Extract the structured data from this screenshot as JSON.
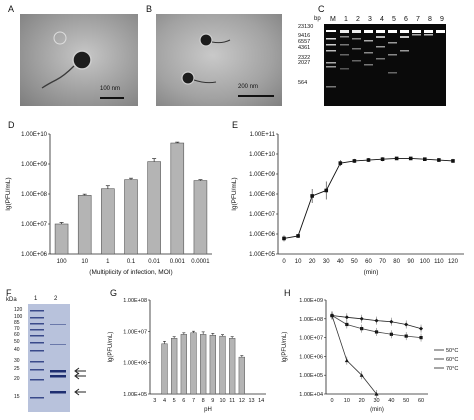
{
  "panels": {
    "A": {
      "letter": "A",
      "scale_bar": "100 nm"
    },
    "B": {
      "letter": "B",
      "scale_bar": "200 nm"
    },
    "C": {
      "letter": "C",
      "unit": "bp",
      "marker_label": "M",
      "lane_labels": [
        "1",
        "2",
        "3",
        "4",
        "5",
        "6",
        "7",
        "8",
        "9"
      ],
      "marker_bands": [
        "23130",
        "9416",
        "6557",
        "4361",
        "2322",
        "2027",
        "564"
      ]
    },
    "F": {
      "letter": "F",
      "unit": "kDa",
      "lane_labels": [
        "1",
        "2"
      ],
      "ladder": [
        "120",
        "100",
        "85",
        "70",
        "60",
        "50",
        "40",
        "30",
        "25",
        "20",
        "15"
      ]
    }
  },
  "chart_data": [
    {
      "panel": "D",
      "type": "bar",
      "ylabel": "lg(PFU/mL)",
      "xlabel": "(Multiplicity of infection, MOI)",
      "categories": [
        "100",
        "10",
        "1",
        "0.1",
        "0.01",
        "0.001",
        "0.0001"
      ],
      "values": [
        10000000.0,
        90000000.0,
        150000000.0,
        300000000.0,
        1200000000.0,
        5000000000.0,
        280000000.0
      ],
      "errors": [
        0.05,
        0.04,
        0.1,
        0.05,
        0.1,
        0.03,
        0.03
      ],
      "yscale": "log",
      "ylim": [
        1000000.0,
        10000000000.0
      ],
      "yticks": [
        "1.00E+06",
        "1.00E+07",
        "1.00E+08",
        "1.00E+09",
        "1.00E+10"
      ]
    },
    {
      "panel": "E",
      "type": "line",
      "ylabel": "lg(PFU/mL)",
      "xlabel": "(min)",
      "x": [
        0,
        10,
        20,
        30,
        40,
        50,
        60,
        70,
        80,
        90,
        100,
        110,
        120
      ],
      "y": [
        600000.0,
        800000.0,
        80000000.0,
        150000000.0,
        3500000000.0,
        4500000000.0,
        5000000000.0,
        5500000000.0,
        6000000000.0,
        6000000000.0,
        5500000000.0,
        5000000000.0,
        4500000000.0
      ],
      "errors": [
        0.15,
        0.1,
        0.35,
        0.45,
        0.15,
        0.1,
        0.1,
        0.1,
        0.05,
        0.05,
        0.05,
        0.1,
        0.1
      ],
      "yscale": "log",
      "ylim": [
        100000.0,
        100000000000.0
      ],
      "yticks": [
        "1.00E+05",
        "1.00E+06",
        "1.00E+07",
        "1.00E+08",
        "1.00E+09",
        "1.00E+10",
        "1.00E+11"
      ],
      "xticks": [
        "0",
        "10",
        "20",
        "30",
        "40",
        "50",
        "60",
        "70",
        "80",
        "90",
        "100",
        "110",
        "120"
      ]
    },
    {
      "panel": "G",
      "type": "bar",
      "ylabel": "lg(PFU/mL)",
      "xlabel": "pH",
      "categories": [
        "3",
        "4",
        "5",
        "6",
        "7",
        "8",
        "9",
        "10",
        "11",
        "12",
        "13",
        "14"
      ],
      "values": [
        null,
        4000000.0,
        6000000.0,
        8000000.0,
        9000000.0,
        8000000.0,
        7500000.0,
        7000000.0,
        6000000.0,
        1500000.0,
        null,
        null
      ],
      "errors": [
        0,
        0.08,
        0.05,
        0.05,
        0.05,
        0.08,
        0.06,
        0.05,
        0.05,
        0.05,
        0,
        0
      ],
      "yscale": "log",
      "ylim": [
        100000.0,
        100000000.0
      ],
      "yticks": [
        "1.00E+05",
        "1.00E+06",
        "1.00E+07",
        "1.00E+08"
      ]
    },
    {
      "panel": "H",
      "type": "line",
      "ylabel": "lg(PFU/mL)",
      "xlabel": "(min)",
      "yscale": "log",
      "ylim": [
        10000.0,
        1000000000.0
      ],
      "yticks": [
        "1.00E+04",
        "1.00E+05",
        "1.00E+06",
        "1.00E+07",
        "1.00E+08",
        "1.00E+09"
      ],
      "xticks": [
        "0",
        "10",
        "20",
        "30",
        "40",
        "50",
        "60"
      ],
      "series": [
        {
          "name": "50°C",
          "marker": "diamond",
          "x": [
            0,
            10,
            20,
            30,
            40,
            50,
            60
          ],
          "y": [
            150000000.0,
            120000000.0,
            100000000.0,
            80000000.0,
            70000000.0,
            50000000.0,
            30000000.0
          ]
        },
        {
          "name": "60°C",
          "marker": "square",
          "x": [
            0,
            10,
            20,
            30,
            40,
            50,
            60
          ],
          "y": [
            150000000.0,
            50000000.0,
            30000000.0,
            20000000.0,
            15000000.0,
            12000000.0,
            10000000.0
          ]
        },
        {
          "name": "70°C",
          "marker": "triangle",
          "x": [
            0,
            10,
            20,
            30
          ],
          "y": [
            150000000.0,
            600000.0,
            100000.0,
            10000.0
          ]
        }
      ],
      "legend": "right"
    }
  ]
}
